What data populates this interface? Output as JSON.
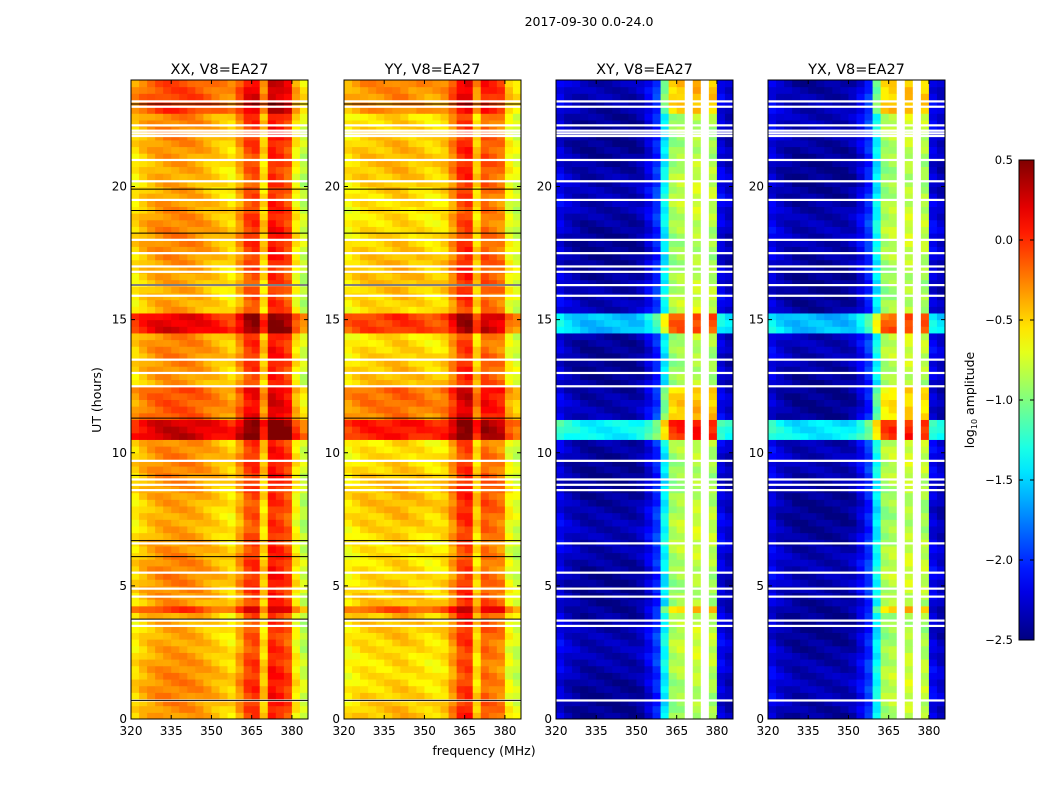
{
  "chart_data": {
    "type": "heatmap",
    "title": "2017-09-30 0.0-24.0",
    "xlabel": "frequency (MHz)",
    "ylabel": "UT (hours)",
    "xlim": [
      320,
      386
    ],
    "ylim": [
      0,
      24
    ],
    "xticks": [
      320,
      335,
      350,
      365,
      380
    ],
    "xtick_labels": [
      "320",
      "335",
      "350",
      "365",
      "380"
    ],
    "yticks": [
      0,
      5,
      10,
      15,
      20
    ],
    "ytick_labels": [
      "0",
      "5",
      "10",
      "15",
      "20"
    ],
    "freq_bin_MHz": 3,
    "time_bin_hours": 0.25,
    "colorbar": {
      "label_main": "log",
      "label_sub": "10",
      "label_rest": " amplitude",
      "range": [
        -2.5,
        0.5
      ],
      "colormap": "jet",
      "ticks": [
        0.5,
        0.0,
        -0.5,
        -1.0,
        -1.5,
        -2.0,
        -2.5
      ],
      "tick_labels": [
        "0.5",
        "0.0",
        "−0.5",
        "−1.0",
        "−1.5",
        "−2.0",
        "−2.5"
      ]
    },
    "flagged_hours_white": [
      0.7,
      3.5,
      3.7,
      4.6,
      4.9,
      5.5,
      6.6,
      8.6,
      8.8,
      9.0,
      9.7,
      12.5,
      13.0,
      13.5,
      15.9,
      16.3,
      16.8,
      17.0,
      17.5,
      18.0,
      19.5,
      20.2,
      21.0,
      21.9,
      22.0,
      22.1,
      22.3,
      23.0,
      23.2
    ],
    "black_line_hours": [
      0.7,
      3.75,
      6.1,
      6.7,
      9.15,
      11.3,
      16.3,
      18.25,
      19.1,
      19.9,
      23.1
    ],
    "time_boosts": [
      {
        "start": 10.5,
        "end": 11.3,
        "delta": 0.6
      },
      {
        "start": 14.5,
        "end": 15.3,
        "delta": 0.5
      },
      {
        "start": 11.3,
        "end": 12.5,
        "delta": 0.25
      },
      {
        "start": 3.9,
        "end": 4.2,
        "delta": 0.3
      },
      {
        "start": 22.8,
        "end": 24.0,
        "delta": 0.25
      }
    ],
    "panels": [
      {
        "name": "XX",
        "title": "XX, V8=EA27",
        "show_black_lines": true,
        "freq_profile": [
          -0.55,
          -0.45,
          -0.38,
          -0.33,
          -0.3,
          -0.3,
          -0.3,
          -0.32,
          -0.35,
          -0.4,
          -0.45,
          -0.5,
          -0.55,
          -0.35,
          -0.1,
          -0.05,
          -0.5,
          0.05,
          0.0,
          -0.1,
          -0.6,
          -0.8
        ]
      },
      {
        "name": "YY",
        "title": "YY, V8=EA27",
        "show_black_lines": true,
        "freq_profile": [
          -0.6,
          -0.55,
          -0.5,
          -0.5,
          -0.5,
          -0.48,
          -0.45,
          -0.45,
          -0.5,
          -0.5,
          -0.55,
          -0.55,
          -0.5,
          -0.3,
          -0.05,
          0.0,
          -0.5,
          -0.15,
          -0.2,
          -0.25,
          -0.65,
          -0.75
        ]
      },
      {
        "name": "XY",
        "title": "XY, V8=EA27",
        "show_black_lines": false,
        "freq_profile": [
          -2.2,
          -2.3,
          -2.35,
          -2.4,
          -2.4,
          -2.4,
          -2.4,
          -2.4,
          -2.4,
          -2.4,
          -2.35,
          -2.2,
          -2.0,
          -1.4,
          -0.9,
          -0.85,
          null,
          -0.8,
          null,
          -0.85,
          -2.2,
          -2.3
        ]
      },
      {
        "name": "YX",
        "title": "YX, V8=EA27",
        "show_black_lines": false,
        "freq_profile": [
          -2.2,
          -2.3,
          -2.35,
          -2.4,
          -2.4,
          -2.4,
          -2.4,
          -2.4,
          -2.4,
          -2.4,
          -2.35,
          -2.2,
          -2.0,
          -1.4,
          -0.9,
          -0.85,
          null,
          -0.8,
          null,
          -0.85,
          -2.2,
          -2.3
        ]
      }
    ]
  }
}
